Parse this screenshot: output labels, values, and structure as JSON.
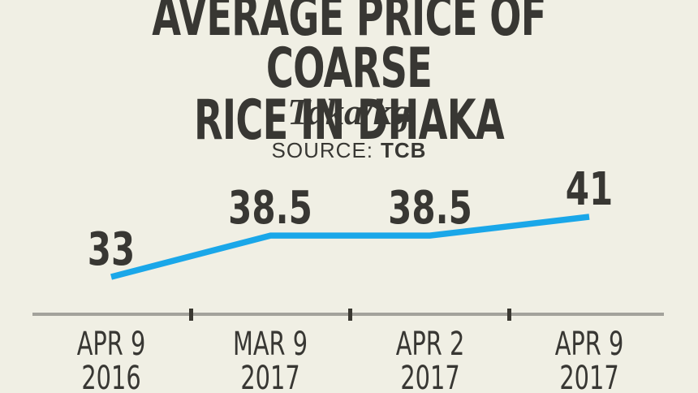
{
  "colors": {
    "background": "#f0efe4",
    "text": "#383733",
    "line": "#1aa7e9",
    "axis": "#a3a29b",
    "tick": "#3a3831"
  },
  "header": {
    "title_line1": "AVERAGE PRICE OF COARSE",
    "title_line2": "RICE IN DHAKA",
    "subtitle": "Taka/kg",
    "source_label": "SOURCE:",
    "source_value": "TCB"
  },
  "chart_data": {
    "type": "line",
    "title": "AVERAGE PRICE OF COARSE RICE IN DHAKA",
    "ylabel": "Taka/kg",
    "source": "TCB",
    "categories": [
      {
        "line1": "APR 9",
        "line2": "2016"
      },
      {
        "line1": "MAR 9",
        "line2": "2017"
      },
      {
        "line1": "APR 2",
        "line2": "2017"
      },
      {
        "line1": "APR 9",
        "line2": "2017"
      }
    ],
    "values": [
      33,
      38.5,
      38.5,
      41
    ],
    "value_labels": [
      "33",
      "38.5",
      "38.5",
      "41"
    ],
    "ylim": [
      33,
      41
    ],
    "grid": false,
    "legend": "none"
  }
}
